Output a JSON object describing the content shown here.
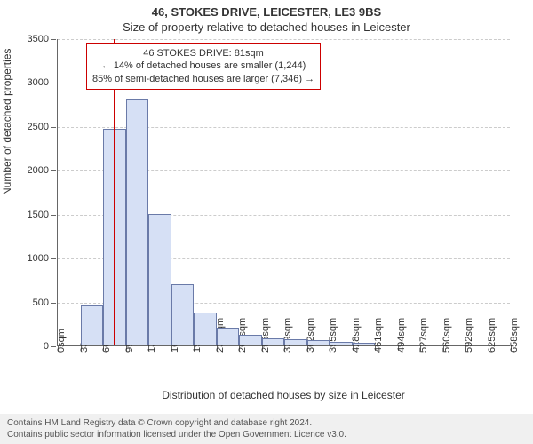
{
  "titles": {
    "line1": "46, STOKES DRIVE, LEICESTER, LE3 9BS",
    "line2": "Size of property relative to detached houses in Leicester"
  },
  "axes": {
    "ylabel": "Number of detached properties",
    "xlabel": "Distribution of detached houses by size in Leicester",
    "ymin": 0,
    "ymax": 3500,
    "ytick_step": 500,
    "xticks": [
      "0sqm",
      "33sqm",
      "66sqm",
      "99sqm",
      "132sqm",
      "165sqm",
      "197sqm",
      "230sqm",
      "263sqm",
      "296sqm",
      "329sqm",
      "362sqm",
      "395sqm",
      "428sqm",
      "461sqm",
      "494sqm",
      "527sqm",
      "560sqm",
      "592sqm",
      "625sqm",
      "658sqm"
    ],
    "x_bin_starts": [
      0,
      33,
      66,
      99,
      132,
      165,
      197,
      230,
      263,
      296,
      329,
      362,
      395,
      428,
      461,
      494,
      527,
      560,
      592,
      625
    ],
    "x_range_max": 658
  },
  "chart": {
    "type": "histogram",
    "bar_fill": "#d6e0f5",
    "bar_border": "#6a7aa8",
    "background": "#ffffff",
    "grid_color": "#cccccc",
    "bar_values": [
      0,
      460,
      2470,
      2800,
      1500,
      700,
      370,
      200,
      120,
      80,
      70,
      60,
      40,
      30,
      0,
      0,
      0,
      0,
      0,
      0
    ]
  },
  "reference": {
    "value_sqm": 81,
    "line_color": "#cc0000",
    "callout_border": "#cc0000",
    "callout_lines": [
      "46 STOKES DRIVE: 81sqm",
      "← 14% of detached houses are smaller (1,244)",
      "85% of semi-detached houses are larger (7,346) →"
    ]
  },
  "footer": {
    "line1": "Contains HM Land Registry data © Crown copyright and database right 2024.",
    "line2": "Contains public sector information licensed under the Open Government Licence v3.0.",
    "bg": "#f0f0f0"
  }
}
